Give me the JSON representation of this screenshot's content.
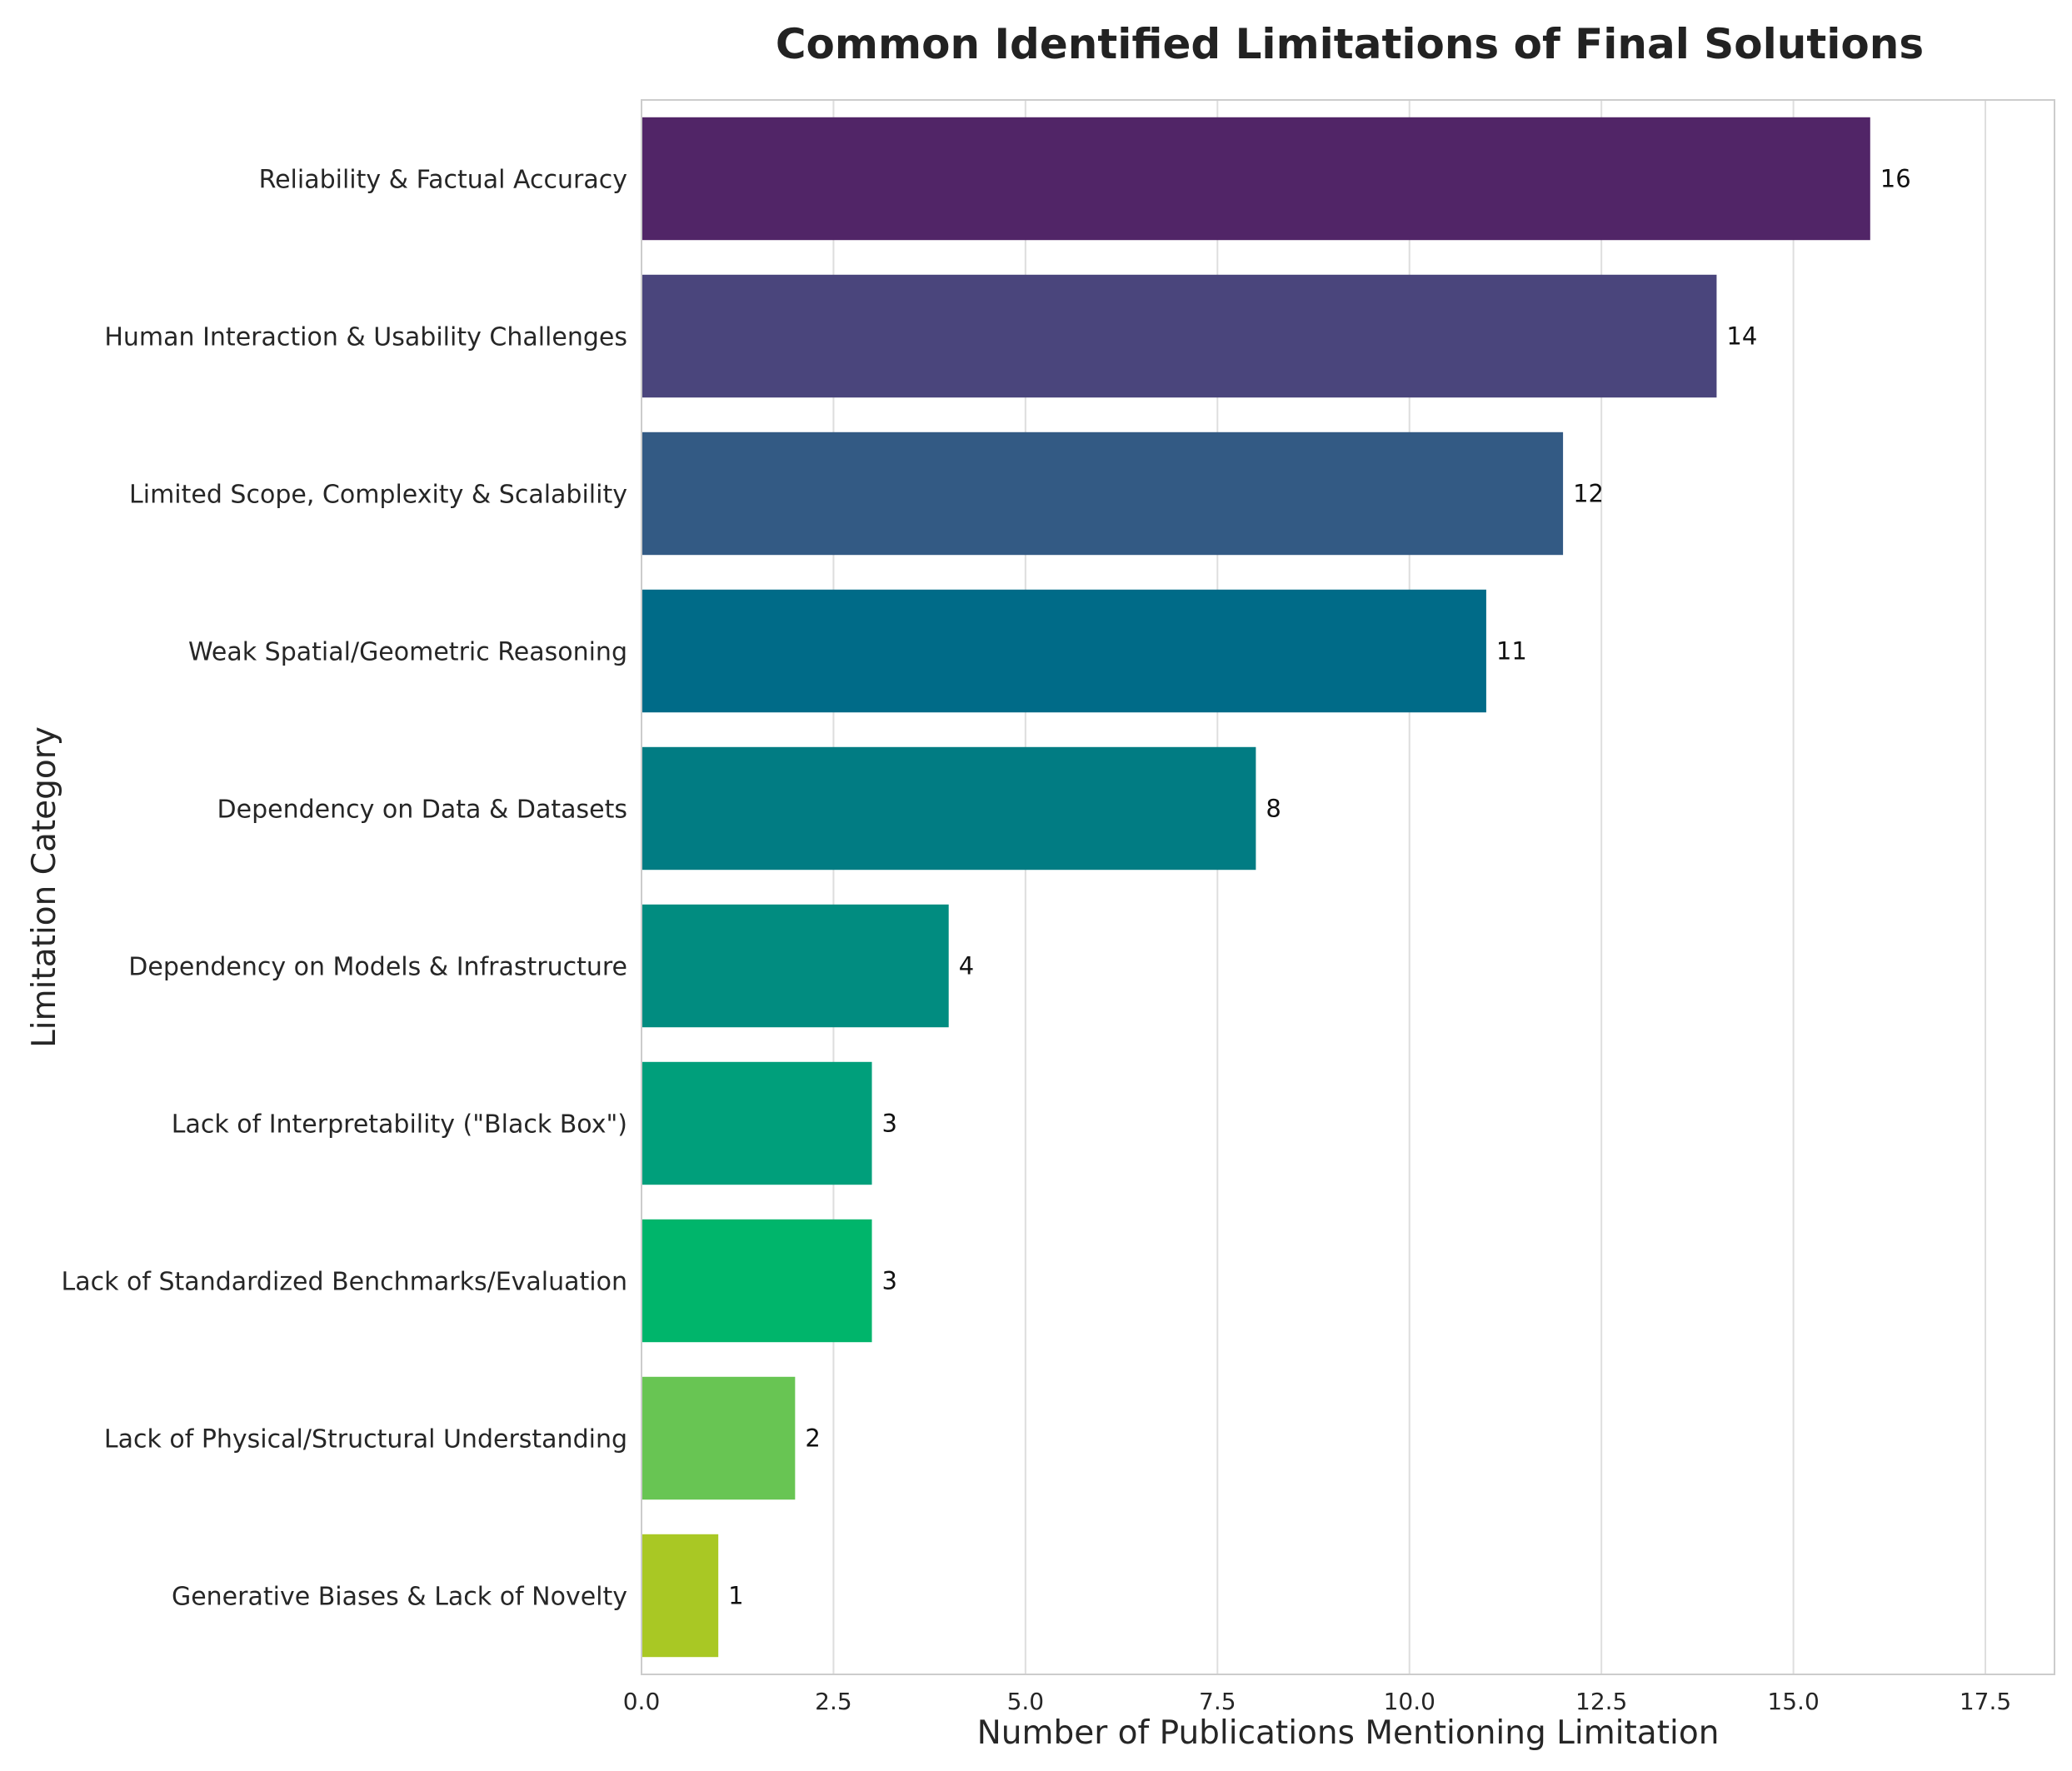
{
  "chart_data": {
    "type": "bar",
    "orientation": "horizontal",
    "title": "Common Identified Limitations of Final Solutions",
    "xlabel": "Number of Publications Mentioning Limitation",
    "ylabel": "Limitation Category",
    "xlim": [
      0,
      18.4
    ],
    "xticks": [
      0.0,
      2.5,
      5.0,
      7.5,
      10.0,
      12.5,
      15.0,
      17.5
    ],
    "xtick_labels": [
      "0.0",
      "2.5",
      "5.0",
      "7.5",
      "10.0",
      "12.5",
      "15.0",
      "17.5"
    ],
    "grid": "vertical",
    "categories": [
      "Reliability & Factual Accuracy",
      "Human Interaction & Usability Challenges",
      "Limited Scope, Complexity & Scalability",
      "Weak Spatial/Geometric Reasoning",
      "Dependency on Data & Datasets",
      "Dependency on Models & Infrastructure",
      "Lack of Interpretability (\"Black Box\")",
      "Lack of Standardized Benchmarks/Evaluation",
      "Lack of Physical/Structural Understanding",
      "Generative Biases & Lack of Novelty"
    ],
    "values": [
      16,
      14,
      12,
      11,
      8,
      4,
      3,
      3,
      2,
      1
    ],
    "data_labels": [
      "16",
      "14",
      "12",
      "11",
      "8",
      "4",
      "3",
      "3",
      "2",
      "1"
    ],
    "colors": [
      "#512567",
      "#4a457c",
      "#335a84",
      "#006b88",
      "#017c83",
      "#018c80",
      "#009f7b",
      "#00b56b",
      "#68c553",
      "#a9c824"
    ]
  }
}
